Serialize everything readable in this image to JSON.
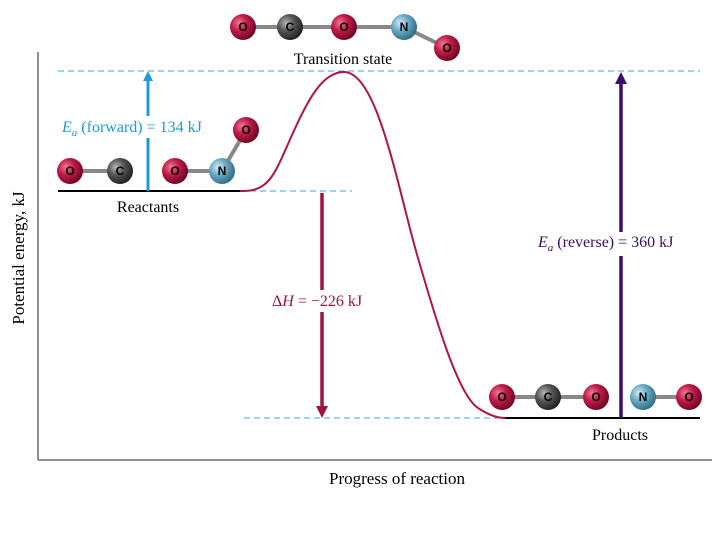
{
  "axes": {
    "y_label": "Potential energy, kJ",
    "x_label": "Progress of reaction"
  },
  "labels": {
    "transition_state": "Transition state",
    "reactants": "Reactants",
    "products": "Products"
  },
  "annotations": {
    "ea_forward": {
      "symbol": "E",
      "subscript": "a",
      "text": " (forward) = 134 kJ"
    },
    "ea_reverse": {
      "symbol": "E",
      "subscript": "a",
      "text": " (reverse) = 360 kJ"
    },
    "delta_h": {
      "symbol": "Δ",
      "italic": "H",
      "text": " = −226 kJ"
    }
  },
  "molecules": {
    "transition_state": [
      "O",
      "C",
      "O",
      "N",
      "O"
    ],
    "reactants": [
      "O",
      "C",
      "O",
      "N",
      "O"
    ],
    "products": [
      "O",
      "C",
      "O",
      "N",
      "O"
    ]
  },
  "energies_kj": {
    "reactants": 0,
    "transition_state": 134,
    "products": -226
  },
  "colors": {
    "curve": "#b01448",
    "ea_forward_arrow": "#1e9ad8",
    "ea_forward_text": "#1e9ad8",
    "delta_h_arrow": "#a0123f",
    "delta_h_text": "#a0123f",
    "ea_reverse_arrow": "#3a0e6a",
    "ea_reverse_text": "#3a0e6a",
    "dashed": "#3aa6d8",
    "oxygen": "#b3163f",
    "carbon": "#4a4a4a",
    "nitrogen": "#5b9db5"
  }
}
